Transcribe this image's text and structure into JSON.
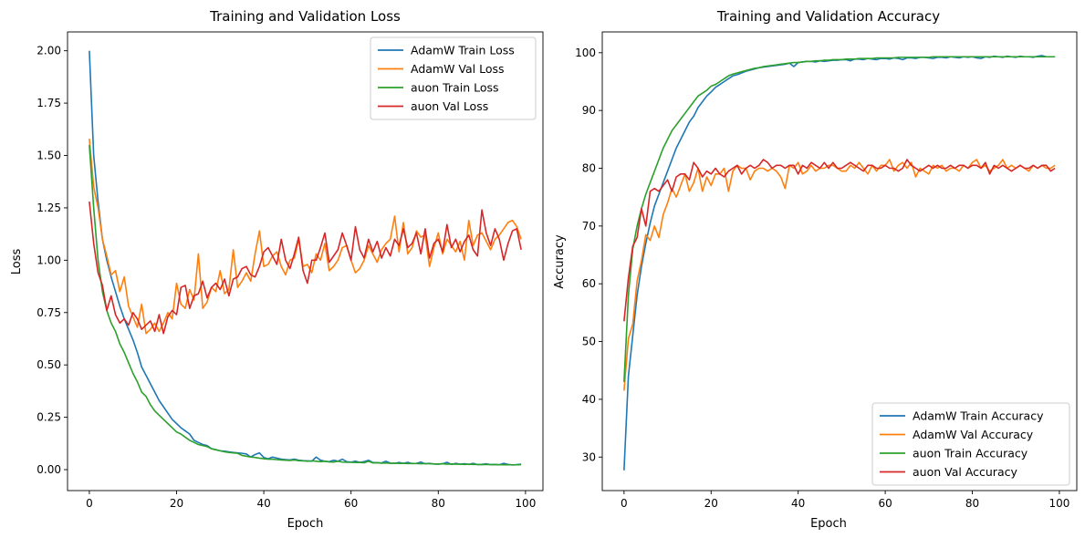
{
  "colors": {
    "adamw_train": "#1f77b4",
    "adamw_val": "#ff7f0e",
    "auon_train": "#2ca02c",
    "auon_val": "#d62728"
  },
  "chart_data": [
    {
      "type": "line",
      "title": "Training and Validation Loss",
      "xlabel": "Epoch",
      "ylabel": "Loss",
      "xlim": [
        -5,
        104
      ],
      "ylim": [
        -0.1,
        2.09
      ],
      "xticks": [
        0,
        20,
        40,
        60,
        80,
        100
      ],
      "yticks": [
        0.0,
        0.25,
        0.5,
        0.75,
        1.0,
        1.25,
        1.5,
        1.75,
        2.0
      ],
      "ytick_labels": [
        "0.00",
        "0.25",
        "0.50",
        "0.75",
        "1.00",
        "1.25",
        "1.50",
        "1.75",
        "2.00"
      ],
      "legend_position": "upper-right",
      "series": [
        {
          "name": "AdamW Train Loss",
          "color": "#1f77b4",
          "values": [
            2.0,
            1.5,
            1.28,
            1.1,
            1.0,
            0.92,
            0.85,
            0.78,
            0.72,
            0.67,
            0.62,
            0.56,
            0.49,
            0.45,
            0.41,
            0.37,
            0.33,
            0.3,
            0.27,
            0.24,
            0.22,
            0.2,
            0.185,
            0.17,
            0.14,
            0.13,
            0.12,
            0.115,
            0.1,
            0.095,
            0.09,
            0.088,
            0.085,
            0.082,
            0.08,
            0.078,
            0.075,
            0.06,
            0.072,
            0.08,
            0.058,
            0.052,
            0.06,
            0.055,
            0.05,
            0.048,
            0.046,
            0.05,
            0.045,
            0.043,
            0.042,
            0.04,
            0.06,
            0.045,
            0.04,
            0.038,
            0.045,
            0.04,
            0.05,
            0.038,
            0.036,
            0.04,
            0.035,
            0.038,
            0.045,
            0.034,
            0.033,
            0.032,
            0.04,
            0.031,
            0.03,
            0.034,
            0.03,
            0.035,
            0.029,
            0.03,
            0.036,
            0.028,
            0.03,
            0.027,
            0.026,
            0.028,
            0.035,
            0.025,
            0.03,
            0.026,
            0.028,
            0.025,
            0.03,
            0.024,
            0.025,
            0.028,
            0.024,
            0.025,
            0.023,
            0.03,
            0.025,
            0.022,
            0.024,
            0.026
          ]
        },
        {
          "name": "AdamW Val Loss",
          "color": "#ff7f0e",
          "values": [
            1.58,
            1.35,
            1.25,
            1.1,
            1.02,
            0.93,
            0.95,
            0.85,
            0.92,
            0.78,
            0.73,
            0.68,
            0.79,
            0.65,
            0.67,
            0.7,
            0.66,
            0.7,
            0.75,
            0.72,
            0.89,
            0.79,
            0.77,
            0.86,
            0.81,
            1.03,
            0.77,
            0.8,
            0.87,
            0.85,
            0.95,
            0.84,
            0.86,
            1.05,
            0.87,
            0.9,
            0.94,
            0.9,
            1.03,
            1.14,
            0.97,
            0.98,
            1.02,
            1.04,
            0.97,
            0.93,
            1.0,
            1.01,
            1.1,
            0.97,
            0.98,
            0.94,
            1.03,
            1.0,
            1.08,
            0.95,
            0.97,
            1.0,
            1.06,
            1.07,
            1.0,
            0.94,
            0.96,
            1.0,
            1.07,
            1.03,
            0.99,
            1.05,
            1.08,
            1.1,
            1.21,
            1.04,
            1.18,
            1.03,
            1.06,
            1.14,
            1.11,
            1.12,
            0.97,
            1.06,
            1.13,
            1.03,
            1.1,
            1.07,
            1.04,
            1.09,
            1.0,
            1.19,
            1.07,
            1.12,
            1.13,
            1.09,
            1.05,
            1.1,
            1.12,
            1.15,
            1.18,
            1.19,
            1.16,
            1.1
          ]
        },
        {
          "name": "auon Train Loss",
          "color": "#2ca02c",
          "values": [
            1.55,
            1.25,
            1.0,
            0.85,
            0.76,
            0.7,
            0.66,
            0.6,
            0.56,
            0.51,
            0.46,
            0.42,
            0.37,
            0.35,
            0.31,
            0.28,
            0.26,
            0.24,
            0.22,
            0.2,
            0.18,
            0.17,
            0.155,
            0.14,
            0.13,
            0.12,
            0.115,
            0.11,
            0.1,
            0.095,
            0.09,
            0.085,
            0.082,
            0.08,
            0.078,
            0.068,
            0.064,
            0.06,
            0.058,
            0.055,
            0.052,
            0.05,
            0.05,
            0.048,
            0.046,
            0.045,
            0.044,
            0.046,
            0.043,
            0.042,
            0.04,
            0.042,
            0.04,
            0.038,
            0.04,
            0.037,
            0.036,
            0.04,
            0.036,
            0.035,
            0.035,
            0.034,
            0.034,
            0.033,
            0.04,
            0.032,
            0.033,
            0.031,
            0.032,
            0.03,
            0.031,
            0.03,
            0.03,
            0.029,
            0.03,
            0.029,
            0.028,
            0.029,
            0.028,
            0.027,
            0.027,
            0.028,
            0.026,
            0.027,
            0.026,
            0.026,
            0.025,
            0.026,
            0.025,
            0.025,
            0.024,
            0.025,
            0.024,
            0.024,
            0.024,
            0.023,
            0.024,
            0.023,
            0.023,
            0.024
          ]
        },
        {
          "name": "auon Val Loss",
          "color": "#d62728",
          "values": [
            1.28,
            1.08,
            0.94,
            0.88,
            0.76,
            0.83,
            0.74,
            0.7,
            0.72,
            0.69,
            0.75,
            0.72,
            0.67,
            0.69,
            0.71,
            0.66,
            0.74,
            0.65,
            0.73,
            0.76,
            0.74,
            0.87,
            0.88,
            0.77,
            0.83,
            0.84,
            0.9,
            0.82,
            0.87,
            0.89,
            0.86,
            0.91,
            0.83,
            0.91,
            0.92,
            0.96,
            0.97,
            0.93,
            0.92,
            0.97,
            1.04,
            1.06,
            1.02,
            0.98,
            1.1,
            1.0,
            0.96,
            1.03,
            1.11,
            0.95,
            0.89,
            1.0,
            1.0,
            1.06,
            1.13,
            0.99,
            1.02,
            1.05,
            1.13,
            1.07,
            1.0,
            1.16,
            1.05,
            1.01,
            1.1,
            1.04,
            1.09,
            1.01,
            1.06,
            1.02,
            1.1,
            1.07,
            1.15,
            1.06,
            1.08,
            1.13,
            1.03,
            1.15,
            1.01,
            1.08,
            1.1,
            1.04,
            1.17,
            1.06,
            1.1,
            1.04,
            1.09,
            1.12,
            1.05,
            1.02,
            1.24,
            1.13,
            1.07,
            1.15,
            1.1,
            1.0,
            1.08,
            1.14,
            1.15,
            1.05
          ]
        }
      ]
    },
    {
      "type": "line",
      "title": "Training and Validation Accuracy",
      "xlabel": "Epoch",
      "ylabel": "Accuracy",
      "xlim": [
        -5,
        104
      ],
      "ylim": [
        24.2,
        103.6
      ],
      "xticks": [
        0,
        20,
        40,
        60,
        80,
        100
      ],
      "yticks": [
        30,
        40,
        50,
        60,
        70,
        80,
        90,
        100
      ],
      "ytick_labels": [
        "30",
        "40",
        "50",
        "60",
        "70",
        "80",
        "90",
        "100"
      ],
      "legend_position": "lower-right",
      "series": [
        {
          "name": "AdamW Train Accuracy",
          "color": "#1f77b4",
          "values": [
            27.7,
            44.0,
            51.0,
            58.0,
            63.0,
            67.0,
            70.5,
            73.5,
            75.5,
            77.5,
            79.5,
            81.5,
            83.5,
            85.0,
            86.5,
            88.0,
            89.0,
            90.5,
            91.5,
            92.5,
            93.2,
            94.0,
            94.5,
            95.0,
            95.5,
            96.0,
            96.2,
            96.5,
            96.8,
            97.0,
            97.2,
            97.4,
            97.5,
            97.6,
            97.7,
            97.8,
            97.9,
            98.0,
            98.2,
            97.6,
            98.3,
            98.4,
            98.5,
            98.5,
            98.4,
            98.6,
            98.5,
            98.6,
            98.7,
            98.7,
            98.8,
            98.8,
            98.6,
            98.9,
            98.9,
            98.8,
            99.0,
            98.9,
            98.8,
            99.0,
            99.0,
            98.9,
            99.1,
            99.0,
            98.8,
            99.1,
            99.1,
            99.0,
            99.2,
            99.2,
            99.1,
            99.0,
            99.2,
            99.2,
            99.1,
            99.3,
            99.2,
            99.1,
            99.3,
            99.2,
            99.3,
            99.1,
            99.0,
            99.3,
            99.2,
            99.4,
            99.3,
            99.2,
            99.4,
            99.3,
            99.2,
            99.4,
            99.3,
            99.3,
            99.2,
            99.4,
            99.5,
            99.3,
            99.3,
            99.3
          ]
        },
        {
          "name": "AdamW Val Accuracy",
          "color": "#ff7f0e",
          "values": [
            41.5,
            50.5,
            53.0,
            60.5,
            64.0,
            68.5,
            67.5,
            70.0,
            68.0,
            72.0,
            74.0,
            76.5,
            75.0,
            77.0,
            79.0,
            76.0,
            77.5,
            80.0,
            76.0,
            78.5,
            77.0,
            79.0,
            79.0,
            80.0,
            76.0,
            79.5,
            80.5,
            80.0,
            80.0,
            78.0,
            79.5,
            80.0,
            80.0,
            79.5,
            80.0,
            79.5,
            78.5,
            76.5,
            80.5,
            80.0,
            81.0,
            79.0,
            79.5,
            80.5,
            79.5,
            80.0,
            80.0,
            80.5,
            80.5,
            80.0,
            79.5,
            79.5,
            80.5,
            80.0,
            81.0,
            80.0,
            79.0,
            80.5,
            79.5,
            80.5,
            80.5,
            81.5,
            79.5,
            80.5,
            81.0,
            80.0,
            81.0,
            78.5,
            80.0,
            79.5,
            79.0,
            80.5,
            80.0,
            80.5,
            79.5,
            80.0,
            80.0,
            79.5,
            80.5,
            80.0,
            81.0,
            81.5,
            80.0,
            80.5,
            79.5,
            80.0,
            80.5,
            81.5,
            80.0,
            80.5,
            80.0,
            80.5,
            80.0,
            79.5,
            80.5,
            80.0,
            80.5,
            80.0,
            80.0,
            80.5
          ]
        },
        {
          "name": "auon Train Accuracy",
          "color": "#2ca02c",
          "values": [
            43.0,
            58.0,
            66.0,
            70.0,
            73.0,
            75.5,
            77.5,
            79.5,
            81.5,
            83.5,
            85.0,
            86.5,
            87.5,
            88.5,
            89.5,
            90.5,
            91.5,
            92.5,
            93.0,
            93.5,
            94.2,
            94.5,
            95.0,
            95.5,
            96.0,
            96.3,
            96.5,
            96.7,
            96.9,
            97.1,
            97.3,
            97.4,
            97.6,
            97.7,
            97.8,
            97.9,
            98.0,
            98.1,
            98.2,
            98.3,
            98.3,
            98.4,
            98.5,
            98.5,
            98.6,
            98.6,
            98.7,
            98.7,
            98.8,
            98.8,
            98.8,
            98.9,
            98.9,
            98.9,
            99.0,
            99.0,
            99.0,
            99.0,
            99.1,
            99.1,
            99.1,
            99.1,
            99.1,
            99.2,
            99.2,
            99.2,
            99.2,
            99.2,
            99.2,
            99.2,
            99.2,
            99.3,
            99.3,
            99.3,
            99.3,
            99.3,
            99.3,
            99.3,
            99.3,
            99.3,
            99.3,
            99.3,
            99.3,
            99.3,
            99.3,
            99.3,
            99.3,
            99.3,
            99.3,
            99.3,
            99.3,
            99.3,
            99.3,
            99.3,
            99.3,
            99.3,
            99.3,
            99.3,
            99.3,
            99.3
          ]
        },
        {
          "name": "auon Val Accuracy",
          "color": "#d62728",
          "values": [
            53.5,
            61.0,
            66.5,
            68.0,
            73.0,
            70.0,
            76.0,
            76.5,
            76.0,
            77.0,
            78.0,
            76.0,
            78.5,
            79.0,
            79.0,
            78.0,
            81.0,
            80.0,
            78.5,
            79.5,
            79.0,
            80.0,
            79.0,
            78.5,
            79.5,
            80.0,
            80.5,
            79.0,
            80.0,
            80.5,
            80.0,
            80.5,
            81.5,
            81.0,
            80.0,
            80.5,
            80.5,
            80.0,
            80.5,
            80.5,
            79.0,
            80.5,
            80.0,
            81.0,
            80.5,
            80.0,
            81.0,
            80.0,
            81.0,
            80.0,
            80.0,
            80.5,
            81.0,
            80.5,
            80.0,
            79.5,
            80.5,
            80.5,
            80.0,
            80.0,
            80.5,
            80.0,
            80.0,
            79.5,
            80.0,
            81.5,
            80.5,
            80.0,
            79.5,
            80.0,
            80.5,
            80.0,
            80.5,
            80.0,
            80.0,
            80.5,
            80.0,
            80.5,
            80.5,
            80.0,
            80.5,
            80.5,
            80.0,
            81.0,
            79.0,
            80.5,
            80.0,
            80.5,
            80.0,
            79.5,
            80.0,
            80.5,
            80.0,
            80.0,
            80.5,
            80.0,
            80.5,
            80.5,
            79.5,
            80.0
          ]
        }
      ]
    }
  ]
}
